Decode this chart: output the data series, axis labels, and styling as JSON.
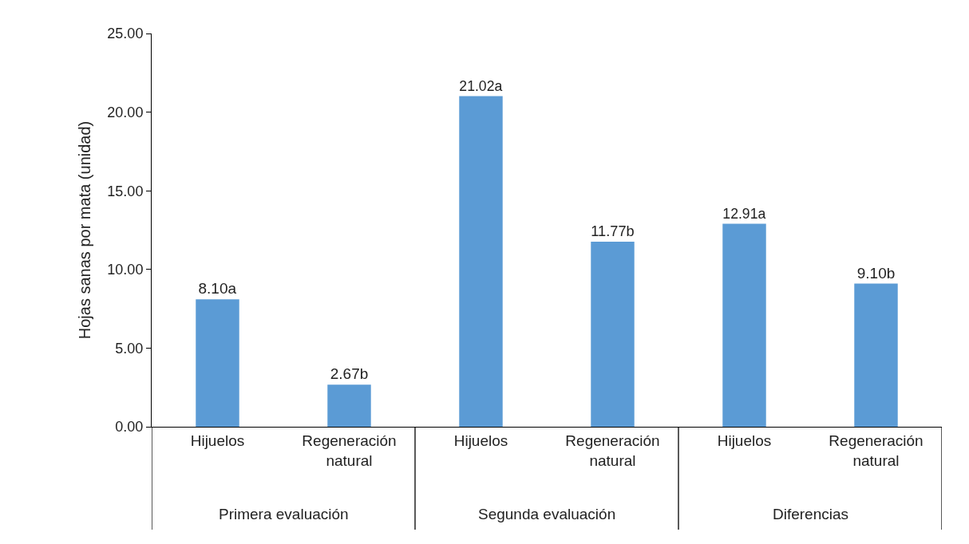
{
  "chart_data": {
    "type": "bar",
    "ylabel": "Hojas sanas por mata (unidad)",
    "categories": [
      "Hijuelos",
      "Regeneración natural",
      "Hijuelos",
      "Regeneración natural",
      "Hijuelos",
      "Regeneración natural"
    ],
    "values": [
      8.1,
      2.67,
      21.02,
      11.77,
      12.91,
      9.1
    ],
    "value_labels": [
      "8.10a",
      "2.67b",
      "21.02a",
      "11.77b",
      "12.91a",
      "9.10b"
    ],
    "color": "#5b9bd5",
    "ylim": [
      0,
      25
    ],
    "yticks": [
      {
        "value": 0,
        "label": "0.00"
      },
      {
        "value": 5,
        "label": "5.00"
      },
      {
        "value": 10,
        "label": "10.00"
      },
      {
        "value": 15,
        "label": "15.00"
      },
      {
        "value": 20,
        "label": "20.00"
      },
      {
        "value": 25,
        "label": "25.00"
      }
    ],
    "annotations": [
      "Primera evaluación",
      "Segunda evaluación",
      "Diferencias"
    ],
    "legend": false
  }
}
